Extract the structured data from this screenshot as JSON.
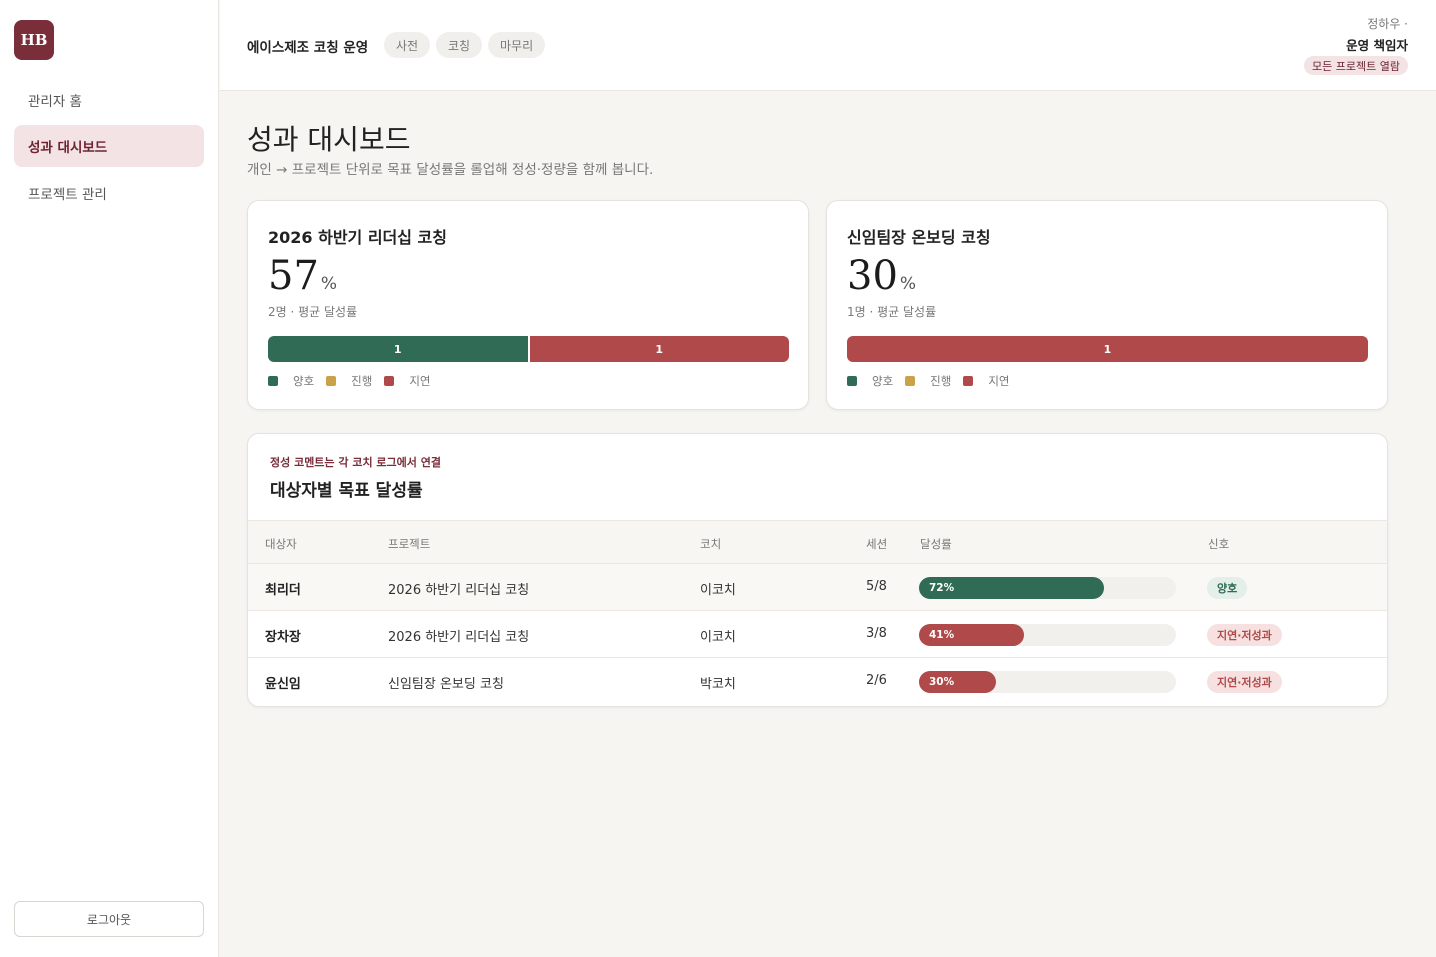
{
  "colors": {
    "good": "#2f6b55",
    "progress": "#c9a24a",
    "late": "#b04a4a",
    "brand": "#7a2e3a"
  },
  "sidebar": {
    "logo": "HB",
    "items": [
      {
        "label": "관리자 홈"
      },
      {
        "label": "성과 대시보드"
      },
      {
        "label": "프로젝트 관리"
      }
    ],
    "logout": "로그아웃"
  },
  "header": {
    "company": "에이스제조 코칭 운영",
    "phases": [
      "사전",
      "코칭",
      "마무리"
    ],
    "user_name": "정하우 ·",
    "user_role": "운영 책임자",
    "user_badge": "모든 프로젝트 열람"
  },
  "page": {
    "title": "성과 대시보드",
    "subtitle": "개인 → 프로젝트 단위로 목표 달성률을 롤업해 정성·정량을 함께 봅니다."
  },
  "projects": [
    {
      "name": "2026 하반기 리더십 코칭",
      "percent": "57",
      "unit": "%",
      "meta": "2명 · 평균 달성률",
      "distribution": [
        {
          "status": "good",
          "count": 1,
          "label": "1"
        },
        {
          "status": "late",
          "count": 1,
          "label": "1"
        }
      ]
    },
    {
      "name": "신임팀장 온보딩 코칭",
      "percent": "30",
      "unit": "%",
      "meta": "1명 · 평균 달성률",
      "distribution": [
        {
          "status": "late",
          "count": 1,
          "label": "1"
        }
      ]
    }
  ],
  "legend": {
    "good": "양호",
    "progress": "진행",
    "late": "지연"
  },
  "table": {
    "kicker": "정성 코멘트는 각 코치 로그에서 연결",
    "title": "대상자별 목표 달성률",
    "headers": {
      "subject": "대상자",
      "project": "프로젝트",
      "coach": "코치",
      "sessions": "세션",
      "rate": "달성률",
      "signal": "신호"
    },
    "rows": [
      {
        "subject": "최리더",
        "project": "2026 하반기 리더십 코칭",
        "coach": "이코치",
        "sessions": "5/8",
        "rate": 72,
        "rate_label": "72%",
        "signal": "양호",
        "status": "good"
      },
      {
        "subject": "장차장",
        "project": "2026 하반기 리더십 코칭",
        "coach": "이코치",
        "sessions": "3/8",
        "rate": 41,
        "rate_label": "41%",
        "signal": "지연·저성과",
        "status": "late"
      },
      {
        "subject": "윤신임",
        "project": "신임팀장 온보딩 코칭",
        "coach": "박코치",
        "sessions": "2/6",
        "rate": 30,
        "rate_label": "30%",
        "signal": "지연·저성과",
        "status": "late"
      }
    ]
  }
}
